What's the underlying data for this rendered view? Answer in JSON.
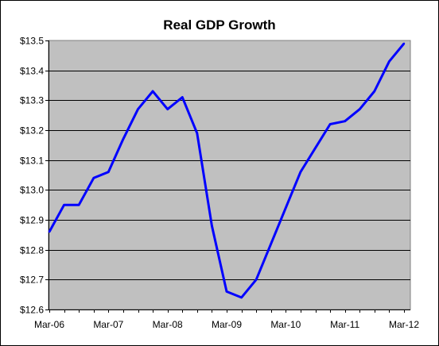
{
  "chart_data": {
    "type": "line",
    "title": "Real GDP Growth",
    "xlabel": "",
    "ylabel": "",
    "ylim": [
      12.6,
      13.5
    ],
    "y_ticks": [
      "$12.6",
      "$12.7",
      "$12.8",
      "$12.9",
      "$13.0",
      "$13.1",
      "$13.2",
      "$13.3",
      "$13.4",
      "$13.5"
    ],
    "y_tick_values": [
      12.6,
      12.7,
      12.8,
      12.9,
      13.0,
      13.1,
      13.2,
      13.3,
      13.4,
      13.5
    ],
    "x_tick_labels": [
      "Mar-06",
      "Mar-07",
      "Mar-08",
      "Mar-09",
      "Mar-10",
      "Mar-11",
      "Mar-12"
    ],
    "grid": "horizontal",
    "plot_background": "#C0C0C0",
    "line_color": "#0000FF",
    "series": [
      {
        "x": [
          "Mar-06",
          "Jun-06",
          "Sep-06",
          "Dec-06",
          "Mar-07",
          "Jun-07",
          "Sep-07",
          "Dec-07",
          "Mar-08",
          "Jun-08",
          "Sep-08",
          "Dec-08",
          "Mar-09",
          "Jun-09",
          "Sep-09",
          "Dec-09",
          "Mar-10",
          "Jun-10",
          "Sep-10",
          "Dec-10",
          "Mar-11",
          "Jun-11",
          "Sep-11",
          "Dec-11",
          "Mar-12"
        ],
        "values": [
          12.86,
          12.95,
          12.95,
          13.04,
          13.06,
          13.17,
          13.27,
          13.33,
          13.27,
          13.31,
          13.19,
          12.88,
          12.66,
          12.64,
          12.7,
          12.82,
          12.94,
          13.06,
          13.14,
          13.22,
          13.23,
          13.27,
          13.33,
          13.43,
          13.49
        ]
      }
    ]
  }
}
